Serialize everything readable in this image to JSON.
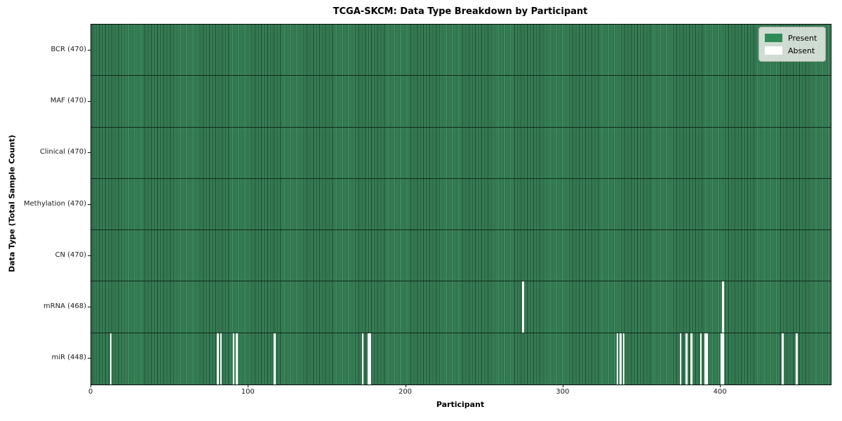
{
  "chart_data": {
    "type": "heatmap",
    "title": "TCGA-SKCM: Data Type Breakdown by Participant",
    "xlabel": "Participant",
    "ylabel": "Data Type (Total Sample Count)",
    "xlim": [
      0,
      470
    ],
    "n_participants": 470,
    "x_ticks": [
      0,
      100,
      200,
      300,
      400
    ],
    "grid": false,
    "legend_position": "upper right",
    "legend": [
      {
        "label": "Present",
        "color": "#2e8b57"
      },
      {
        "label": "Absent",
        "color": "#ffffff"
      }
    ],
    "rows": [
      {
        "label": "BCR (470)",
        "data_type": "BCR",
        "total": 470,
        "absent": []
      },
      {
        "label": "MAF (470)",
        "data_type": "MAF",
        "total": 470,
        "absent": []
      },
      {
        "label": "Clinical (470)",
        "data_type": "Clinical",
        "total": 470,
        "absent": []
      },
      {
        "label": "Methylation (470)",
        "data_type": "Methylation",
        "total": 470,
        "absent": []
      },
      {
        "label": "CN (470)",
        "data_type": "CN",
        "total": 470,
        "absent": []
      },
      {
        "label": "mRNA (468)",
        "data_type": "mRNA",
        "total": 468,
        "absent": [
          274,
          401
        ]
      },
      {
        "label": "miR (448)",
        "data_type": "miR",
        "total": 448,
        "absent": [
          12,
          80,
          82,
          90,
          92,
          116,
          172,
          176,
          177,
          334,
          336,
          338,
          374,
          378,
          381,
          387,
          390,
          391,
          400,
          401,
          439,
          448
        ]
      }
    ],
    "colors": {
      "present_fill": "#3c8c5f",
      "cell_edge": "#1b4029",
      "absent_fill": "#ffffff",
      "row_separator": "#10281a",
      "plot_border": "#0a0a0a"
    }
  }
}
